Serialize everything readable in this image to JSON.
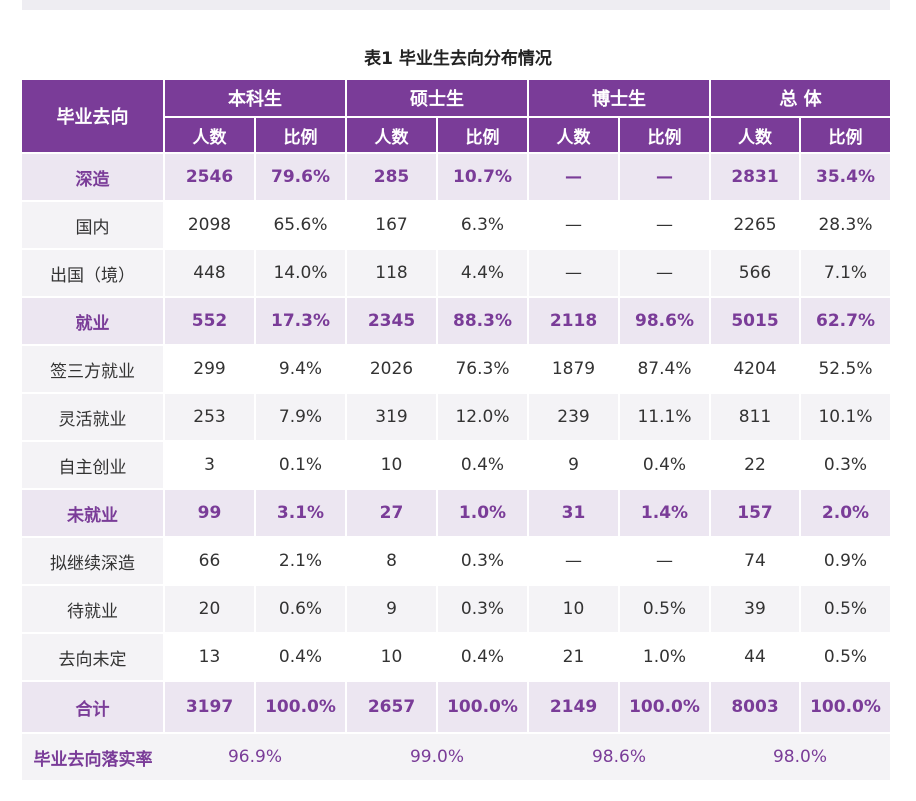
{
  "caption": "表1  毕业生去向分布情况",
  "header": {
    "row_label": "毕业去向",
    "groups": [
      "本科生",
      "硕士生",
      "博士生",
      "总  体"
    ],
    "sub": [
      "人数",
      "比例"
    ]
  },
  "rows": [
    {
      "type": "summary",
      "label": "深造",
      "cells": [
        "2546",
        "79.6%",
        "285",
        "10.7%",
        "—",
        "—",
        "2831",
        "35.4%"
      ]
    },
    {
      "type": "detail",
      "label": "国内",
      "cells": [
        "2098",
        "65.6%",
        "167",
        "6.3%",
        "—",
        "—",
        "2265",
        "28.3%"
      ]
    },
    {
      "type": "detail",
      "label": "出国（境）",
      "cells": [
        "448",
        "14.0%",
        "118",
        "4.4%",
        "—",
        "—",
        "566",
        "7.1%"
      ]
    },
    {
      "type": "summary",
      "label": "就业",
      "cells": [
        "552",
        "17.3%",
        "2345",
        "88.3%",
        "2118",
        "98.6%",
        "5015",
        "62.7%"
      ]
    },
    {
      "type": "detail",
      "label": "签三方就业",
      "cells": [
        "299",
        "9.4%",
        "2026",
        "76.3%",
        "1879",
        "87.4%",
        "4204",
        "52.5%"
      ]
    },
    {
      "type": "detail",
      "label": "灵活就业",
      "cells": [
        "253",
        "7.9%",
        "319",
        "12.0%",
        "239",
        "11.1%",
        "811",
        "10.1%"
      ]
    },
    {
      "type": "detail",
      "label": "自主创业",
      "cells": [
        "3",
        "0.1%",
        "10",
        "0.4%",
        "9",
        "0.4%",
        "22",
        "0.3%"
      ]
    },
    {
      "type": "summary",
      "label": "未就业",
      "cells": [
        "99",
        "3.1%",
        "27",
        "1.0%",
        "31",
        "1.4%",
        "157",
        "2.0%"
      ]
    },
    {
      "type": "detail",
      "label": "拟继续深造",
      "cells": [
        "66",
        "2.1%",
        "8",
        "0.3%",
        "—",
        "—",
        "74",
        "0.9%"
      ]
    },
    {
      "type": "detail",
      "label": "待就业",
      "cells": [
        "20",
        "0.6%",
        "9",
        "0.3%",
        "10",
        "0.5%",
        "39",
        "0.5%"
      ]
    },
    {
      "type": "detail",
      "label": "去向未定",
      "cells": [
        "13",
        "0.4%",
        "10",
        "0.4%",
        "21",
        "1.0%",
        "44",
        "0.5%"
      ]
    },
    {
      "type": "total",
      "label": "合计",
      "cells": [
        "3197",
        "100.0%",
        "2657",
        "100.0%",
        "2149",
        "100.0%",
        "8003",
        "100.0%"
      ]
    }
  ],
  "rate_row": {
    "label": "毕业去向落实率",
    "values": [
      "96.9%",
      "99.0%",
      "98.6%",
      "98.0%"
    ]
  },
  "colors": {
    "accent": "#7a3c98",
    "summary_bg": "#ece6f1",
    "stripe_bg": "#f4f3f6"
  }
}
